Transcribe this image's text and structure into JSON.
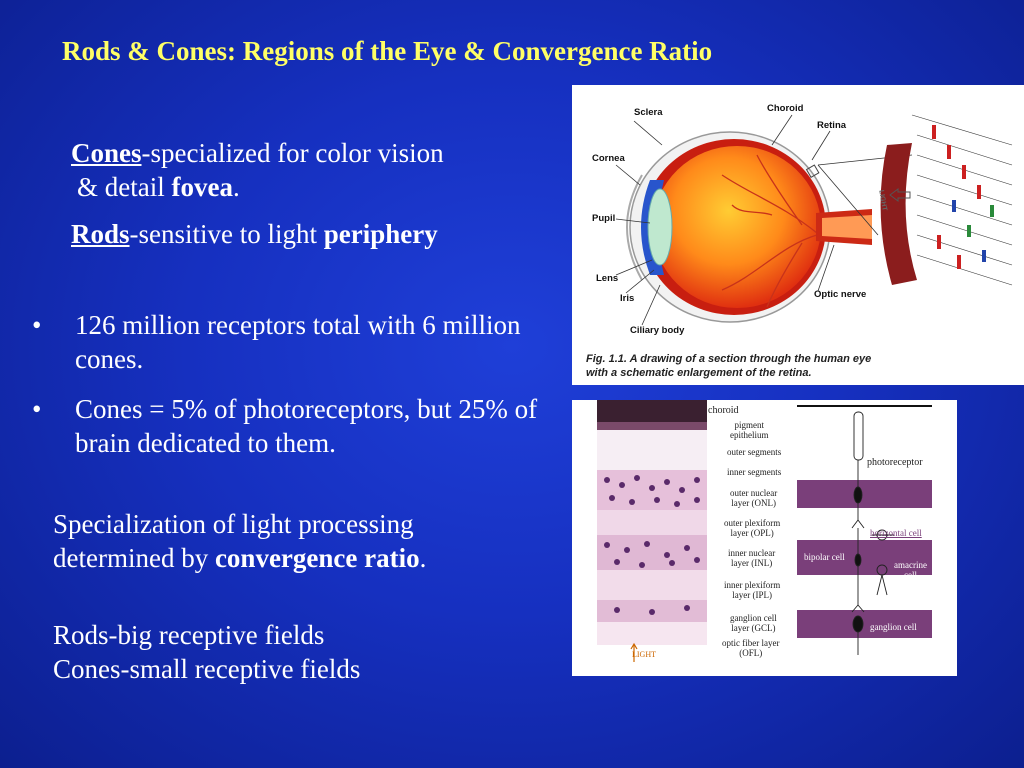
{
  "title": "Rods & Cones: Regions of the Eye & Convergence Ratio",
  "cones": {
    "word": "Cones",
    "rest": "-specialized for color vision",
    "line2_pre": "& detail ",
    "line2_bold": "fovea",
    "line2_end": "."
  },
  "rods": {
    "word": "Rods",
    "rest": "-sensitive to light ",
    "bold": "periphery"
  },
  "bullets": [
    {
      "marker": "•",
      "text": "126 million receptors total with 6 million cones."
    },
    {
      "marker": "•",
      "text": "Cones = 5% of photoreceptors, but 25% of brain dedicated to them."
    }
  ],
  "convergence": {
    "line1": "Specialization of light processing",
    "line2_pre": "determined by ",
    "line2_bold": "convergence ratio",
    "line2_end": "."
  },
  "fields": {
    "rods": "Rods-big receptive fields",
    "cones": "Cones-small receptive fields"
  },
  "figure1": {
    "labels": {
      "sclera": "Sclera",
      "choroid": "Choroid",
      "retina": "Retina",
      "cornea": "Cornea",
      "pupil": "Pupil",
      "lens": "Lens",
      "iris": "Iris",
      "ciliary": "Ciliary body",
      "optic": "Optic nerve",
      "light": "LIGHT"
    },
    "caption_line1": "Fig. 1.1. A drawing of a section through the human eye",
    "caption_line2": "with a schematic enlargement of the retina."
  },
  "figure2": {
    "labels": {
      "choroid": "choroid",
      "pigment1": "pigment",
      "pigment2": "epithelium",
      "outer_seg": "outer segments",
      "inner_seg": "inner segments",
      "onl1": "outer nuclear",
      "onl2": "layer (ONL)",
      "opl1": "outer plexiform",
      "opl2": "layer (OPL)",
      "inl1": "inner nuclear",
      "inl2": "layer (INL)",
      "ipl1": "inner plexiform",
      "ipl2": "layer (IPL)",
      "gcl1": "ganglion cell",
      "gcl2": "layer (GCL)",
      "ofl1": "optic fiber layer",
      "ofl2": "(OFL)",
      "photoreceptor": "photoreceptor",
      "horizontal": "horizontal cell",
      "bipolar": "bipolar cell",
      "amacrine1": "amacrine",
      "amacrine2": "cell",
      "ganglion": "ganglion cell",
      "light": "LIGHT"
    }
  }
}
